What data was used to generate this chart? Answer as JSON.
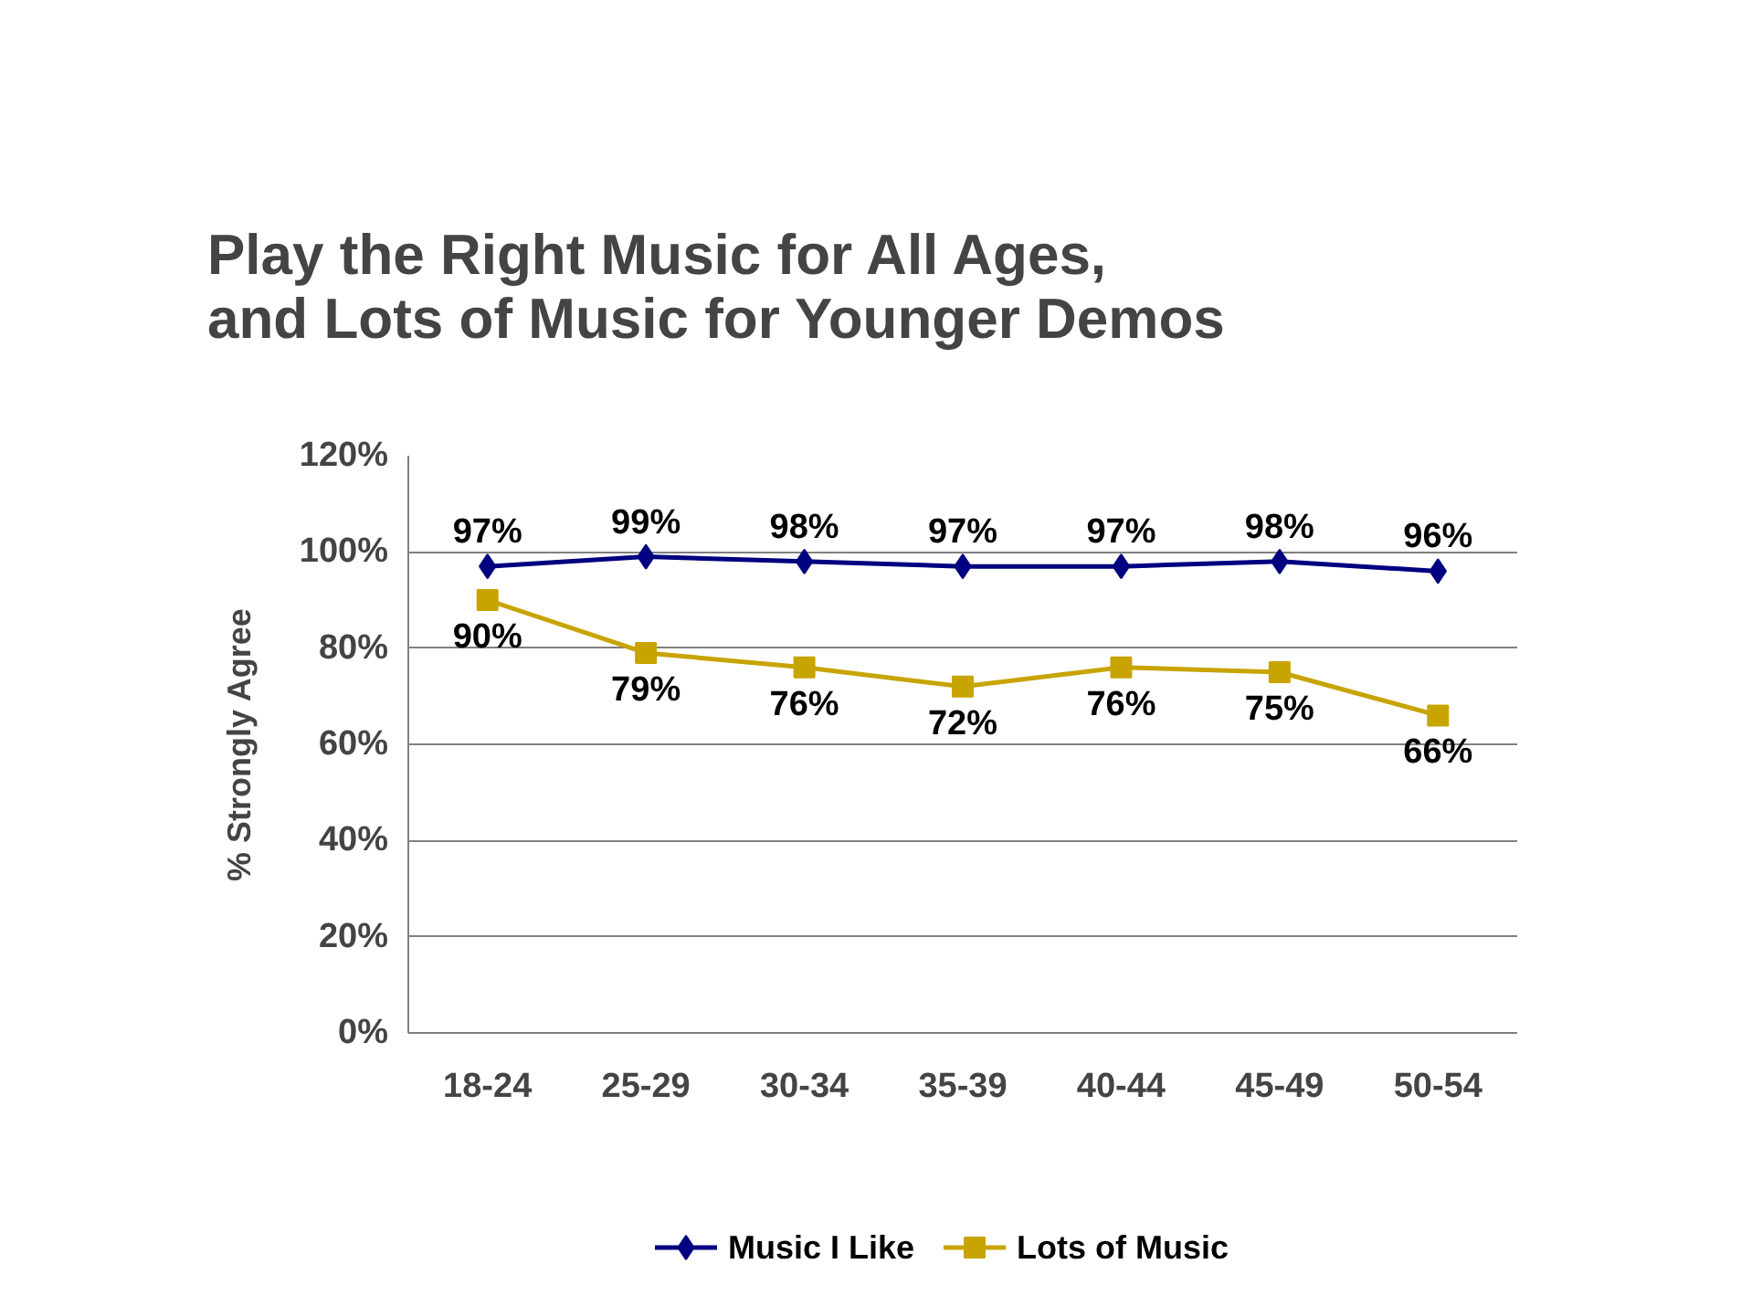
{
  "chart_data": {
    "type": "line",
    "title": "Play the Right Music for All Ages,\nand Lots of Music for Younger Demos",
    "ylabel": "% Strongly Agree",
    "categories": [
      "18-24",
      "25-29",
      "30-34",
      "35-39",
      "40-44",
      "45-49",
      "50-54"
    ],
    "series": [
      {
        "name": "Music I Like",
        "color": "#000080",
        "marker": "diamond",
        "values": [
          97,
          99,
          98,
          97,
          97,
          98,
          96
        ],
        "value_labels": [
          "97%",
          "99%",
          "98%",
          "97%",
          "97%",
          "98%",
          "96%"
        ]
      },
      {
        "name": "Lots of Music",
        "color": "#c8a400",
        "marker": "square",
        "values": [
          90,
          79,
          76,
          72,
          76,
          75,
          66
        ],
        "value_labels": [
          "90%",
          "79%",
          "76%",
          "72%",
          "76%",
          "75%",
          "66%"
        ]
      }
    ],
    "ylim": [
      0,
      120
    ],
    "yticks": [
      {
        "value": 0,
        "label": "0%"
      },
      {
        "value": 20,
        "label": "20%"
      },
      {
        "value": 40,
        "label": "40%"
      },
      {
        "value": 60,
        "label": "60%"
      },
      {
        "value": 80,
        "label": "80%"
      },
      {
        "value": 100,
        "label": "100%"
      },
      {
        "value": 120,
        "label": "120%"
      }
    ],
    "grid": "y",
    "legend": "bottom",
    "line_style": "solid"
  }
}
